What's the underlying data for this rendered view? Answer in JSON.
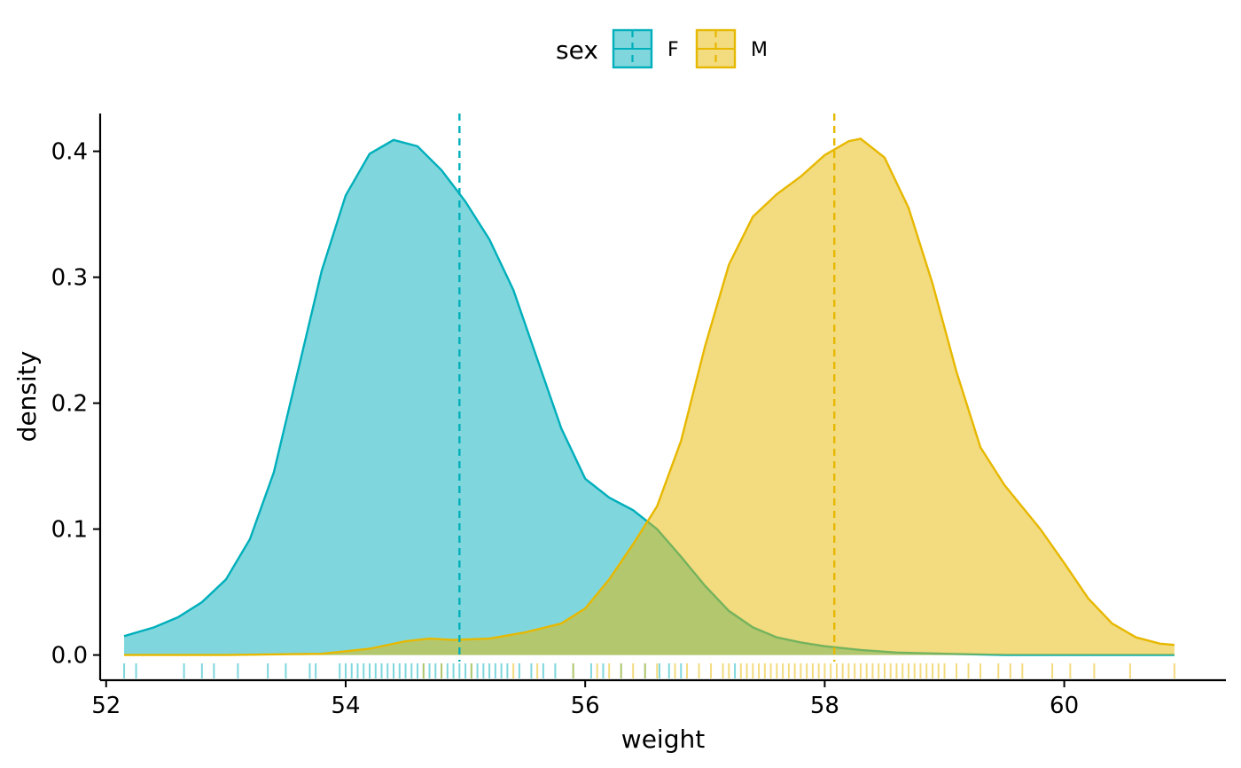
{
  "chart_data": {
    "type": "area",
    "xlabel": "weight",
    "ylabel": "density",
    "xlim": [
      51.95,
      61.35
    ],
    "ylim": [
      -0.02,
      0.43
    ],
    "x_ticks": [
      52,
      54,
      56,
      58,
      60
    ],
    "x_tick_labels": [
      "52",
      "54",
      "56",
      "58",
      "60"
    ],
    "y_ticks": [
      0.0,
      0.1,
      0.2,
      0.3,
      0.4
    ],
    "y_tick_labels": [
      "0.0",
      "0.1",
      "0.2",
      "0.3",
      "0.4"
    ],
    "grid": false,
    "legend": {
      "title": "sex",
      "placement": "top",
      "entries": [
        "F",
        "M"
      ]
    },
    "series": [
      {
        "name": "F",
        "color": "#00AFBB",
        "fill_opacity": 0.5,
        "mean": 54.95,
        "x": [
          52.15,
          52.4,
          52.6,
          52.8,
          53.0,
          53.2,
          53.4,
          53.6,
          53.8,
          54.0,
          54.2,
          54.4,
          54.6,
          54.8,
          55.0,
          55.2,
          55.4,
          55.6,
          55.8,
          56.0,
          56.2,
          56.4,
          56.6,
          56.8,
          57.0,
          57.2,
          57.4,
          57.6,
          57.8,
          58.0,
          58.3,
          58.6,
          59.0,
          59.5,
          60.0,
          60.5,
          60.92
        ],
        "y": [
          0.015,
          0.022,
          0.03,
          0.042,
          0.06,
          0.092,
          0.145,
          0.225,
          0.305,
          0.365,
          0.398,
          0.409,
          0.404,
          0.385,
          0.36,
          0.33,
          0.29,
          0.235,
          0.18,
          0.14,
          0.125,
          0.115,
          0.1,
          0.078,
          0.055,
          0.035,
          0.022,
          0.014,
          0.01,
          0.007,
          0.004,
          0.002,
          0.001,
          0.0,
          0.0,
          0.0,
          0.0
        ],
        "rug": [
          52.15,
          52.25,
          52.65,
          52.8,
          52.9,
          53.1,
          53.35,
          53.5,
          53.7,
          53.75,
          53.95,
          54.0,
          54.05,
          54.1,
          54.15,
          54.2,
          54.25,
          54.3,
          54.35,
          54.4,
          54.45,
          54.5,
          54.55,
          54.6,
          54.65,
          54.7,
          54.75,
          54.8,
          54.85,
          54.9,
          54.95,
          55.0,
          55.05,
          55.1,
          55.15,
          55.2,
          55.25,
          55.3,
          55.35,
          55.45,
          55.55,
          55.65,
          55.75,
          55.9,
          56.05,
          56.15,
          56.3,
          56.5,
          56.62,
          56.7,
          56.8,
          57.25
        ]
      },
      {
        "name": "M",
        "color": "#E7B800",
        "fill_opacity": 0.5,
        "mean": 58.08,
        "x": [
          52.15,
          53.0,
          53.8,
          54.2,
          54.5,
          54.7,
          54.9,
          55.2,
          55.5,
          55.8,
          56.0,
          56.2,
          56.4,
          56.6,
          56.8,
          57.0,
          57.2,
          57.4,
          57.6,
          57.8,
          58.0,
          58.2,
          58.3,
          58.5,
          58.7,
          58.9,
          59.1,
          59.3,
          59.5,
          59.8,
          60.0,
          60.2,
          60.4,
          60.6,
          60.8,
          60.92
        ],
        "y": [
          0.0,
          0.0,
          0.001,
          0.005,
          0.011,
          0.013,
          0.012,
          0.013,
          0.018,
          0.025,
          0.037,
          0.06,
          0.088,
          0.118,
          0.17,
          0.245,
          0.31,
          0.348,
          0.366,
          0.38,
          0.397,
          0.408,
          0.41,
          0.395,
          0.355,
          0.295,
          0.225,
          0.165,
          0.135,
          0.1,
          0.073,
          0.045,
          0.025,
          0.014,
          0.009,
          0.008
        ],
        "rug": [
          54.65,
          54.8,
          55.05,
          55.4,
          55.6,
          55.9,
          56.1,
          56.2,
          56.3,
          56.4,
          56.5,
          56.6,
          56.75,
          56.85,
          56.95,
          57.05,
          57.15,
          57.2,
          57.3,
          57.35,
          57.4,
          57.45,
          57.5,
          57.55,
          57.6,
          57.65,
          57.7,
          57.75,
          57.8,
          57.85,
          57.9,
          57.95,
          58.0,
          58.05,
          58.1,
          58.15,
          58.2,
          58.25,
          58.3,
          58.35,
          58.4,
          58.45,
          58.5,
          58.55,
          58.6,
          58.65,
          58.7,
          58.75,
          58.8,
          58.85,
          58.9,
          58.95,
          59.0,
          59.1,
          59.2,
          59.3,
          59.45,
          59.55,
          59.65,
          59.9,
          60.05,
          60.25,
          60.55,
          60.92
        ]
      }
    ]
  }
}
